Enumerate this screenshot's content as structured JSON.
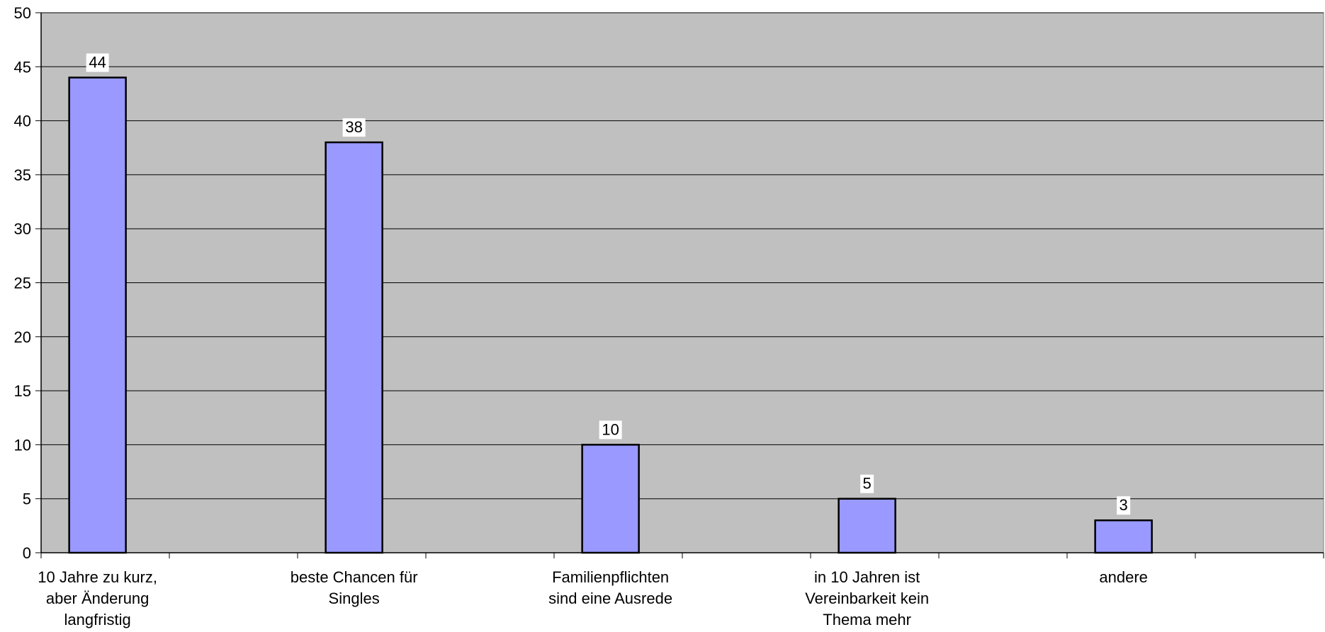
{
  "chart_data": {
    "type": "bar",
    "title": "",
    "xlabel": "",
    "ylabel": "",
    "ylim": [
      0,
      50
    ],
    "ytick_step": 5,
    "grid": true,
    "legend": "none",
    "categories": [
      [
        "10 Jahre zu kurz,",
        "aber Änderung",
        "langfristig"
      ],
      [
        "beste Chancen für",
        "Singles"
      ],
      [
        "Familienpflichten",
        "sind eine Ausrede"
      ],
      [
        "in 10 Jahren ist",
        "Vereinbarkeit kein",
        "Thema mehr"
      ],
      [
        "andere"
      ]
    ],
    "values": [
      44,
      38,
      10,
      5,
      3
    ],
    "data_labels": [
      "44",
      "38",
      "10",
      "5",
      "3"
    ],
    "colors": {
      "plot_background": "#c0c0c0",
      "bar_fill": "#9999ff",
      "bar_stroke": "#000000",
      "gridline": "#000000",
      "data_label_background": "#ffffff"
    }
  }
}
